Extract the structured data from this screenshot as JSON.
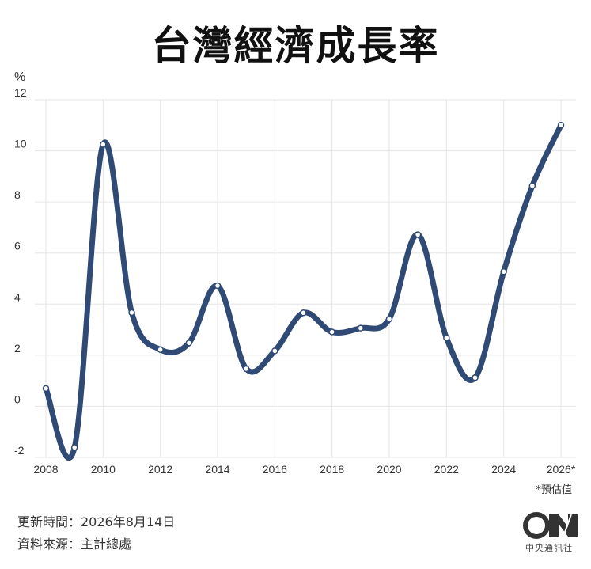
{
  "title": "台灣經濟成長率",
  "unit": "%",
  "footnote": "*預估值",
  "footer": {
    "updated": "更新時間：2026年8月14日",
    "source": "資料來源：主計總處"
  },
  "logo": {
    "brand_text": "中央通訊社"
  },
  "colors": {
    "line": "#2f4a75",
    "grid": "#e6e6e6",
    "point_fill": "#ffffff"
  },
  "chart_data": {
    "type": "line",
    "title": "台灣經濟成長率",
    "xlabel": "",
    "ylabel": "%",
    "x": [
      2008,
      2009,
      2010,
      2011,
      2012,
      2013,
      2014,
      2015,
      2016,
      2017,
      2018,
      2019,
      2020,
      2021,
      2022,
      2023,
      2024,
      2025,
      2026
    ],
    "x_tick_labels": [
      "2008",
      "2010",
      "2012",
      "2014",
      "2016",
      "2018",
      "2020",
      "2022",
      "2024",
      "2026*"
    ],
    "x_tick_values": [
      2008,
      2010,
      2012,
      2014,
      2016,
      2018,
      2020,
      2022,
      2024,
      2026
    ],
    "y_ticks": [
      -2,
      0,
      2,
      4,
      6,
      8,
      10,
      12
    ],
    "ylim": [
      -2,
      12
    ],
    "grid": true,
    "series": [
      {
        "values": [
          0.7,
          -1.61,
          10.25,
          3.67,
          2.22,
          2.48,
          4.72,
          1.47,
          2.17,
          3.66,
          2.91,
          3.06,
          3.42,
          6.72,
          2.68,
          1.12,
          5.27,
          8.63,
          11.0
        ]
      }
    ]
  }
}
